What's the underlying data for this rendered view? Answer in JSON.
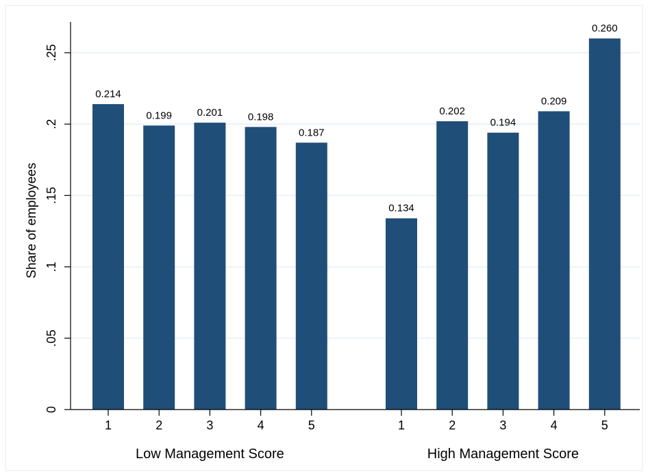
{
  "chart_data": {
    "type": "bar",
    "ylabel": "Share of employees",
    "ylim": [
      0,
      0.27
    ],
    "yticks": [
      {
        "value": 0,
        "label": "0"
      },
      {
        "value": 0.05,
        "label": ".05"
      },
      {
        "value": 0.1,
        "label": ".1"
      },
      {
        "value": 0.15,
        "label": ".15"
      },
      {
        "value": 0.2,
        "label": ".2"
      },
      {
        "value": 0.25,
        "label": ".25"
      }
    ],
    "grid": true,
    "bar_color": "#1f4e79",
    "grid_color": "#e6eef3",
    "groups": [
      {
        "label": "Low Management Score",
        "categories": [
          "1",
          "2",
          "3",
          "4",
          "5"
        ],
        "values": [
          0.214,
          0.199,
          0.201,
          0.198,
          0.187
        ],
        "value_labels": [
          "0.214",
          "0.199",
          "0.201",
          "0.198",
          "0.187"
        ]
      },
      {
        "label": "High Management Score",
        "categories": [
          "1",
          "2",
          "3",
          "4",
          "5"
        ],
        "values": [
          0.134,
          0.202,
          0.194,
          0.209,
          0.26
        ],
        "value_labels": [
          "0.134",
          "0.202",
          "0.194",
          "0.209",
          "0.260"
        ]
      }
    ]
  }
}
